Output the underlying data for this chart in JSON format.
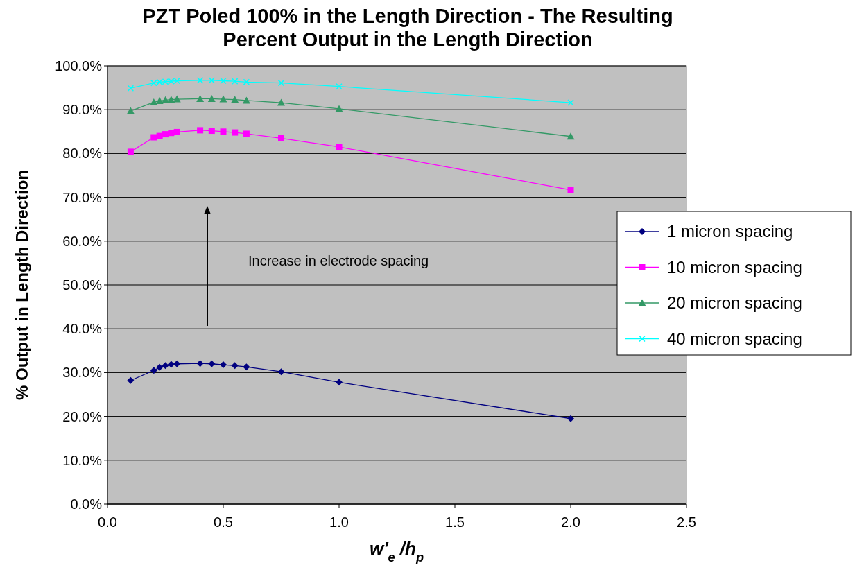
{
  "chart_data": {
    "type": "line",
    "title": "PZT Poled 100% in the Length Direction - The Resulting Percent Output in the Length Direction",
    "xlabel": "w′$_{e}$ /h$_{p}$",
    "ylabel": "% Output in Length Direction",
    "annotations": [
      "Increase in electrode spacing"
    ],
    "x": [
      0.1,
      0.2,
      0.225,
      0.25,
      0.275,
      0.3,
      0.4,
      0.45,
      0.5,
      0.55,
      0.6,
      0.75,
      1.0,
      2.0
    ],
    "series": [
      {
        "name": "1 micron spacing",
        "color": "#000080",
        "marker": "diamond",
        "values": [
          28.2,
          30.5,
          31.2,
          31.6,
          31.9,
          32.0,
          32.1,
          32.0,
          31.8,
          31.6,
          31.3,
          30.2,
          27.8,
          19.5
        ]
      },
      {
        "name": "10 micron spacing",
        "color": "#ff00ff",
        "marker": "square",
        "values": [
          80.4,
          83.7,
          84.0,
          84.4,
          84.7,
          84.9,
          85.3,
          85.2,
          85.0,
          84.8,
          84.5,
          83.5,
          81.5,
          71.7
        ]
      },
      {
        "name": "20 micron spacing",
        "color": "#339966",
        "marker": "triangle",
        "values": [
          89.7,
          91.7,
          92.0,
          92.2,
          92.3,
          92.4,
          92.5,
          92.5,
          92.4,
          92.3,
          92.1,
          91.6,
          90.2,
          83.9
        ]
      },
      {
        "name": "40 micron spacing",
        "color": "#00ffff",
        "marker": "cross",
        "values": [
          94.9,
          96.1,
          96.3,
          96.4,
          96.5,
          96.6,
          96.7,
          96.7,
          96.6,
          96.5,
          96.3,
          96.1,
          95.3,
          91.6
        ]
      }
    ],
    "xlim": [
      0,
      2.5
    ],
    "xticks": [
      {
        "value": 0,
        "label": "0.0"
      },
      {
        "value": 0.5,
        "label": "0.5"
      },
      {
        "value": 1,
        "label": "1.0"
      },
      {
        "value": 1.5,
        "label": "1.5"
      },
      {
        "value": 2,
        "label": "2.0"
      },
      {
        "value": 2.5,
        "label": "2.5"
      }
    ],
    "ylim": [
      0,
      100
    ],
    "yticks": [
      {
        "value": 0,
        "label": "0.0%"
      },
      {
        "value": 10,
        "label": "10.0%"
      },
      {
        "value": 20,
        "label": "20.0%"
      },
      {
        "value": 30,
        "label": "30.0%"
      },
      {
        "value": 40,
        "label": "40.0%"
      },
      {
        "value": 50,
        "label": "50.0%"
      },
      {
        "value": 60,
        "label": "60.0%"
      },
      {
        "value": 70,
        "label": "70.0%"
      },
      {
        "value": 80,
        "label": "80.0%"
      },
      {
        "value": 90,
        "label": "90.0%"
      },
      {
        "value": 100,
        "label": "100.0%"
      }
    ],
    "grid": "y",
    "legend": "right",
    "line_style": "solid"
  }
}
